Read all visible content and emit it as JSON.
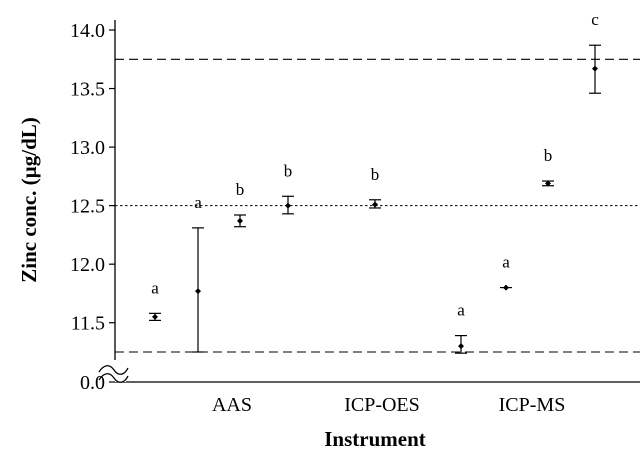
{
  "chart_data": {
    "type": "scatter",
    "title": "",
    "xlabel": "Instrument",
    "ylabel": "Zinc conc. (µg/dL)",
    "ylim_upper": [
      11.25,
      14.0
    ],
    "ylim_lower": [
      0.0,
      0.0
    ],
    "axis_break": true,
    "yticks": [
      "0.0",
      "11.5",
      "12.0",
      "12.5",
      "13.0",
      "13.5",
      "14.0"
    ],
    "categories": [
      "AAS",
      "ICP-OES",
      "ICP-MS"
    ],
    "grid": false,
    "points": [
      {
        "group": "AAS",
        "mean": 11.55,
        "err_low": 11.52,
        "err_high": 11.58,
        "letter": "a"
      },
      {
        "group": "AAS",
        "mean": 11.77,
        "err_low": 11.25,
        "err_high": 12.31,
        "letter": "a"
      },
      {
        "group": "AAS",
        "mean": 12.37,
        "err_low": 12.32,
        "err_high": 12.42,
        "letter": "b"
      },
      {
        "group": "AAS",
        "mean": 12.5,
        "err_low": 12.43,
        "err_high": 12.58,
        "letter": "b"
      },
      {
        "group": "ICP-OES",
        "mean": 12.51,
        "err_low": 12.48,
        "err_high": 12.55,
        "letter": "b"
      },
      {
        "group": "ICP-MS",
        "mean": 11.3,
        "err_low": 11.24,
        "err_high": 11.39,
        "letter": "a"
      },
      {
        "group": "ICP-MS",
        "mean": 11.8,
        "err_low": 11.8,
        "err_high": 11.8,
        "letter": "a"
      },
      {
        "group": "ICP-MS",
        "mean": 12.69,
        "err_low": 12.67,
        "err_high": 12.71,
        "letter": "b"
      },
      {
        "group": "ICP-MS",
        "mean": 13.67,
        "err_low": 13.46,
        "err_high": 13.87,
        "letter": "c"
      }
    ],
    "reference_lines": [
      {
        "value": 13.75,
        "style": "dashed"
      },
      {
        "value": 12.5,
        "style": "dotted"
      },
      {
        "value": 11.25,
        "style": "dashed"
      }
    ]
  }
}
